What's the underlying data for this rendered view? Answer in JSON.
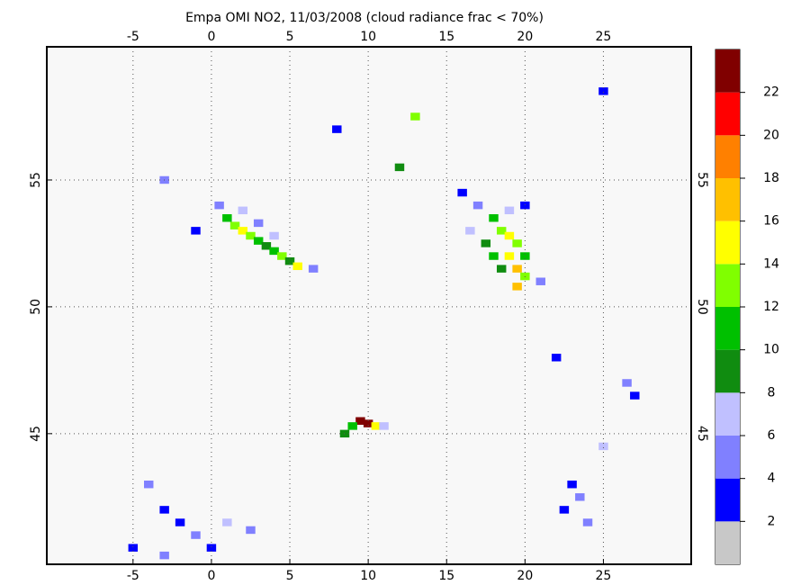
{
  "chart_data": {
    "type": "map",
    "title": "Empa OMI NO2, 11/03/2008 (cloud radiance frac < 70%)",
    "xlim": [
      -10.5,
      30.6
    ],
    "ylim": [
      39.85,
      60.25
    ],
    "xticks": [
      -5,
      0,
      5,
      10,
      15,
      20,
      25
    ],
    "yticks": [
      45,
      50,
      55
    ],
    "grid": true,
    "clim": [
      0,
      24
    ],
    "cticks": [
      2,
      4,
      6,
      8,
      10,
      12,
      14,
      16,
      18,
      20,
      22
    ],
    "colors": [
      "#c8c8c8",
      "#0000ff",
      "#8080ff",
      "#c0c0ff",
      "#108c10",
      "#00c000",
      "#80ff00",
      "#ffff00",
      "#ffc000",
      "#ff8000",
      "#ff0000",
      "#800000"
    ],
    "cells": {
      "lon": [
        1,
        1.5,
        2,
        2.5,
        3,
        3.5,
        4,
        4.5,
        5,
        5.5,
        2,
        3,
        4,
        0.5,
        -1,
        -3,
        18,
        18.5,
        19,
        19.5,
        19,
        19.5,
        20,
        18,
        17.5,
        20,
        18.5,
        17,
        16,
        20,
        19.5,
        21,
        16.5,
        19,
        9.5,
        10,
        10.5,
        9,
        8.5,
        11,
        -4,
        -3,
        -2,
        -1,
        0,
        1,
        2.5,
        -5,
        -3,
        23,
        23.5,
        22.5,
        24,
        25,
        26.5,
        27,
        13,
        12,
        8,
        25,
        22,
        6.5
      ],
      "lat": [
        53.5,
        53.2,
        53,
        52.8,
        52.6,
        52.4,
        52.2,
        52,
        51.8,
        51.6,
        53.8,
        53.3,
        52.8,
        54,
        53,
        55,
        53.5,
        53,
        52.8,
        52.5,
        52,
        51.5,
        51.2,
        52,
        52.5,
        52,
        51.5,
        54,
        54.5,
        54,
        50.8,
        51,
        53,
        53.8,
        45.5,
        45.4,
        45.3,
        45.3,
        45,
        45.3,
        43,
        42,
        41.5,
        41,
        40.5,
        41.5,
        41.2,
        40.5,
        40.2,
        43,
        42.5,
        42,
        41.5,
        44.5,
        47,
        46.5,
        57.5,
        55.5,
        57,
        58.5,
        48,
        51.5
      ],
      "values": [
        10,
        12,
        14,
        12,
        10,
        8,
        10,
        12,
        8,
        14,
        6,
        4,
        6,
        4,
        2,
        4,
        10,
        12,
        14,
        12,
        14,
        16,
        12,
        10,
        8,
        10,
        8,
        4,
        2,
        2,
        16,
        4,
        6,
        6,
        22,
        22,
        14,
        10,
        8,
        6,
        4,
        2,
        2,
        4,
        2,
        6,
        4,
        2,
        4,
        2,
        4,
        2,
        4,
        6,
        4,
        2,
        12,
        8,
        2,
        2,
        2,
        4
      ]
    }
  }
}
